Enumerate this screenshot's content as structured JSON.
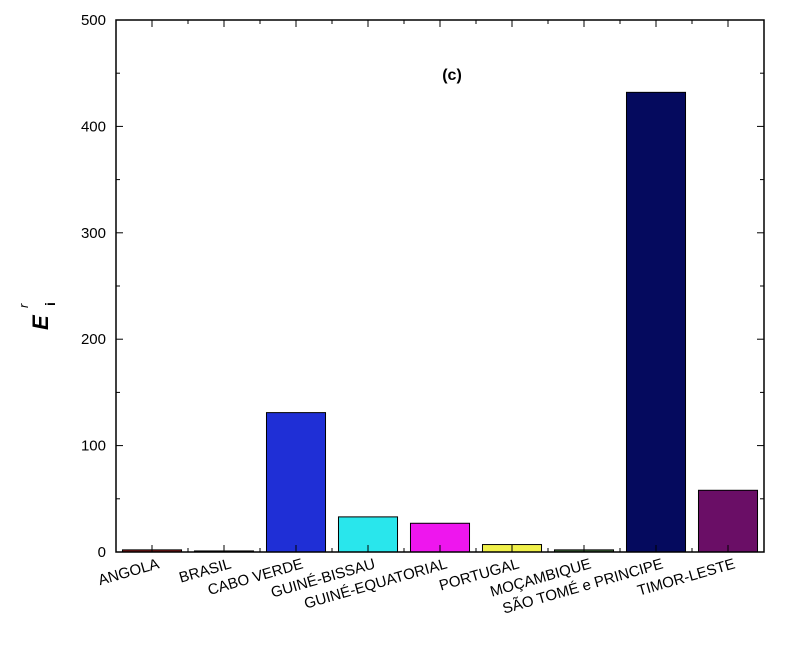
{
  "chart_data": {
    "type": "bar",
    "categories": [
      "ANGOLA",
      "BRASIL",
      "CABO VERDE",
      "GUINÉ-BISSAU",
      "GUINÉ-EQUATORIAL",
      "PORTUGAL",
      "MOÇAMBIQUE",
      "SÃO TOMÉ e PRINCIPE",
      "TIMOR-LESTE"
    ],
    "values": [
      2,
      1,
      131,
      33,
      27,
      7,
      2,
      432,
      58
    ],
    "colors": [
      "#8b1a1a",
      "#222222",
      "#1f2fd6",
      "#29e6ec",
      "#ee16ee",
      "#f0f04a",
      "#3f6b3a",
      "#050a5e",
      "#6a0e66"
    ],
    "title": "",
    "annotation": "(c)",
    "xlabel": "",
    "ylabel": {
      "main": "E",
      "sup": "r",
      "sub": "i"
    },
    "ylim": [
      0,
      500
    ],
    "yticks": [
      0,
      100,
      200,
      300,
      400,
      500
    ],
    "grid": false,
    "legend": "none"
  }
}
